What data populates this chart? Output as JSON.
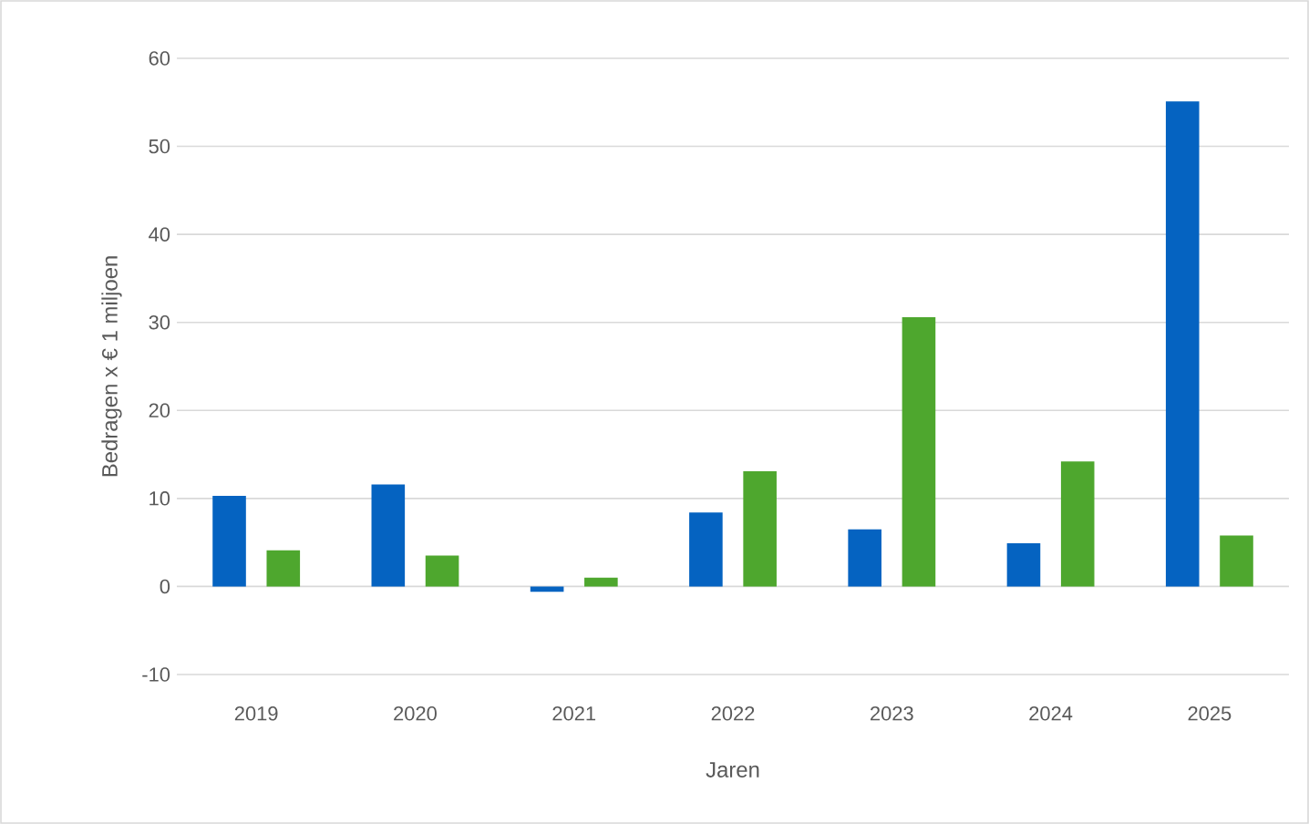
{
  "chart_data": {
    "type": "bar",
    "xlabel": "Jaren",
    "ylabel": "Bedragen x € 1 miljoen",
    "categories": [
      "2019",
      "2020",
      "2021",
      "2022",
      "2023",
      "2024",
      "2025"
    ],
    "series": [
      {
        "color": "#0563c1",
        "values": [
          10.3,
          11.6,
          -0.6,
          8.4,
          6.5,
          4.9,
          55.1
        ]
      },
      {
        "color": "#4ea72e",
        "values": [
          4.1,
          3.5,
          1.0,
          13.1,
          30.6,
          14.2,
          5.8
        ]
      }
    ],
    "ylim": [
      -10,
      60
    ],
    "yticks": [
      -10,
      0,
      10,
      20,
      30,
      40,
      50,
      60
    ],
    "grid": "y"
  }
}
